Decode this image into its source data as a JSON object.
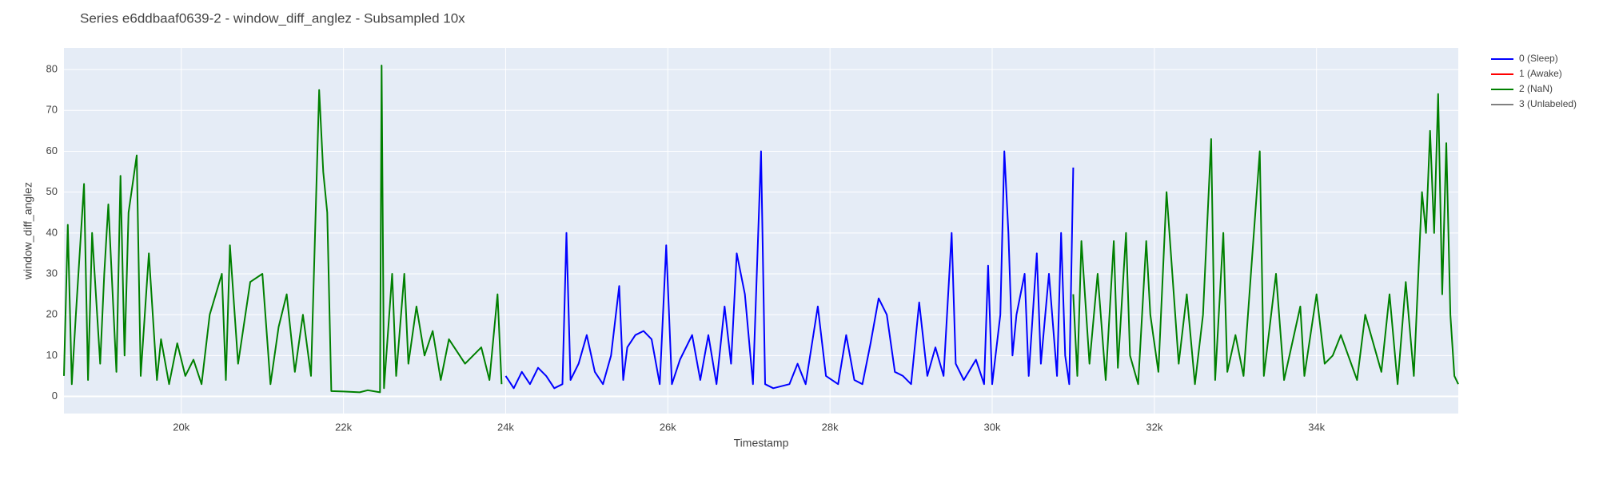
{
  "chart_data": {
    "type": "line",
    "title": "Series e6ddbaaf0639-2 - window_diff_anglez - Subsampled 10x",
    "x_label": "Timestamp",
    "y_label": "window_diff_anglez",
    "xlim": [
      18553,
      35748
    ],
    "ylim": [
      -4.2,
      85.3
    ],
    "xticks": [
      {
        "value": 20000,
        "label": "20k"
      },
      {
        "value": 22000,
        "label": "22k"
      },
      {
        "value": 24000,
        "label": "24k"
      },
      {
        "value": 26000,
        "label": "26k"
      },
      {
        "value": 28000,
        "label": "28k"
      },
      {
        "value": 30000,
        "label": "30k"
      },
      {
        "value": 32000,
        "label": "32k"
      },
      {
        "value": 34000,
        "label": "34k"
      }
    ],
    "yticks": [
      0,
      10,
      20,
      30,
      40,
      50,
      60,
      70,
      80
    ],
    "grid": true,
    "series": [
      {
        "name": "0 (Sleep)",
        "color": "#0000ff",
        "x": [
          24000,
          24100,
          24200,
          24300,
          24400,
          24500,
          24600,
          24700,
          24750,
          24800,
          24900,
          25000,
          25100,
          25200,
          25300,
          25400,
          25450,
          25500,
          25600,
          25700,
          25800,
          25900,
          25980,
          26050,
          26150,
          26300,
          26400,
          26500,
          26600,
          26700,
          26780,
          26850,
          26950,
          27050,
          27150,
          27200,
          27300,
          27500,
          27600,
          27700,
          27850,
          27950,
          28100,
          28200,
          28300,
          28400,
          28500,
          28600,
          28700,
          28800,
          28900,
          29000,
          29100,
          29200,
          29300,
          29400,
          29500,
          29550,
          29650,
          29800,
          29900,
          29950,
          30000,
          30100,
          30150,
          30200,
          30250,
          30300,
          30400,
          30450,
          30550,
          30600,
          30700,
          30800,
          30850,
          30900,
          30950,
          31000
        ],
        "values": [
          5,
          2,
          6,
          3,
          7,
          5,
          2,
          3,
          40,
          4,
          8,
          15,
          6,
          3,
          10,
          27,
          4,
          12,
          15,
          16,
          14,
          3,
          37,
          3,
          9,
          15,
          4,
          15,
          3,
          22,
          8,
          35,
          25,
          3,
          60,
          3,
          2,
          3,
          8,
          3,
          22,
          5,
          3,
          15,
          4,
          3,
          13,
          24,
          20,
          6,
          5,
          3,
          23,
          5,
          12,
          5,
          40,
          8,
          4,
          9,
          3,
          32,
          3,
          20,
          60,
          40,
          10,
          20,
          30,
          5,
          35,
          8,
          30,
          5,
          40,
          10,
          3,
          56
        ]
      },
      {
        "name": "1 (Awake)",
        "color": "#ff0000",
        "x": [],
        "values": []
      },
      {
        "name": "2 (NaN)",
        "color": "#008000",
        "x": [
          18553,
          18600,
          18650,
          18700,
          18800,
          18850,
          18900,
          19000,
          19050,
          19100,
          19200,
          19250,
          19300,
          19350,
          19450,
          19500,
          19600,
          19700,
          19750,
          19850,
          19950,
          20050,
          20150,
          20250,
          20350,
          20500,
          20550,
          20600,
          20700,
          20850,
          21000,
          21100,
          21200,
          21300,
          21400,
          21500,
          21600,
          21700,
          21750,
          21800,
          21850,
          22000,
          22200,
          22300,
          22450,
          22470,
          22500,
          22600,
          22650,
          22750,
          22800,
          22900,
          23000,
          23100,
          23200,
          23300,
          23500,
          23700,
          23800,
          23900,
          23950,
          null,
          31000,
          31050,
          31100,
          31200,
          31300,
          31400,
          31500,
          31550,
          31650,
          31700,
          31800,
          31900,
          31950,
          32050,
          32150,
          32300,
          32400,
          32500,
          32600,
          32700,
          32750,
          32850,
          32900,
          33000,
          33100,
          33300,
          33350,
          33500,
          33600,
          33800,
          33850,
          34000,
          34100,
          34200,
          34300,
          34500,
          34600,
          34800,
          34900,
          35000,
          35100,
          35200,
          35300,
          35350,
          35400,
          35450,
          35500,
          35550,
          35600,
          35650,
          35700,
          35748
        ],
        "values": [
          5,
          42,
          3,
          20,
          52,
          4,
          40,
          8,
          30,
          47,
          6,
          54,
          10,
          45,
          59,
          5,
          35,
          4,
          14,
          3,
          13,
          5,
          9,
          3,
          20,
          30,
          4,
          37,
          8,
          28,
          30,
          3,
          17,
          25,
          6,
          20,
          5,
          75,
          55,
          45,
          1.3,
          1.2,
          1,
          1.5,
          1,
          81,
          2,
          30,
          5,
          30,
          8,
          22,
          10,
          16,
          4,
          14,
          8,
          12,
          4,
          25,
          3,
          null,
          25,
          5,
          38,
          8,
          30,
          4,
          38,
          7,
          40,
          10,
          3,
          38,
          20,
          6,
          50,
          8,
          25,
          3,
          20,
          63,
          4,
          40,
          6,
          15,
          5,
          60,
          5,
          30,
          4,
          22,
          5,
          25,
          8,
          10,
          15,
          4,
          20,
          6,
          25,
          3,
          28,
          5,
          50,
          40,
          65,
          40,
          74,
          25,
          62,
          20,
          5,
          3
        ]
      },
      {
        "name": "3 (Unlabeled)",
        "color": "#808080",
        "x": [],
        "values": []
      }
    ]
  }
}
